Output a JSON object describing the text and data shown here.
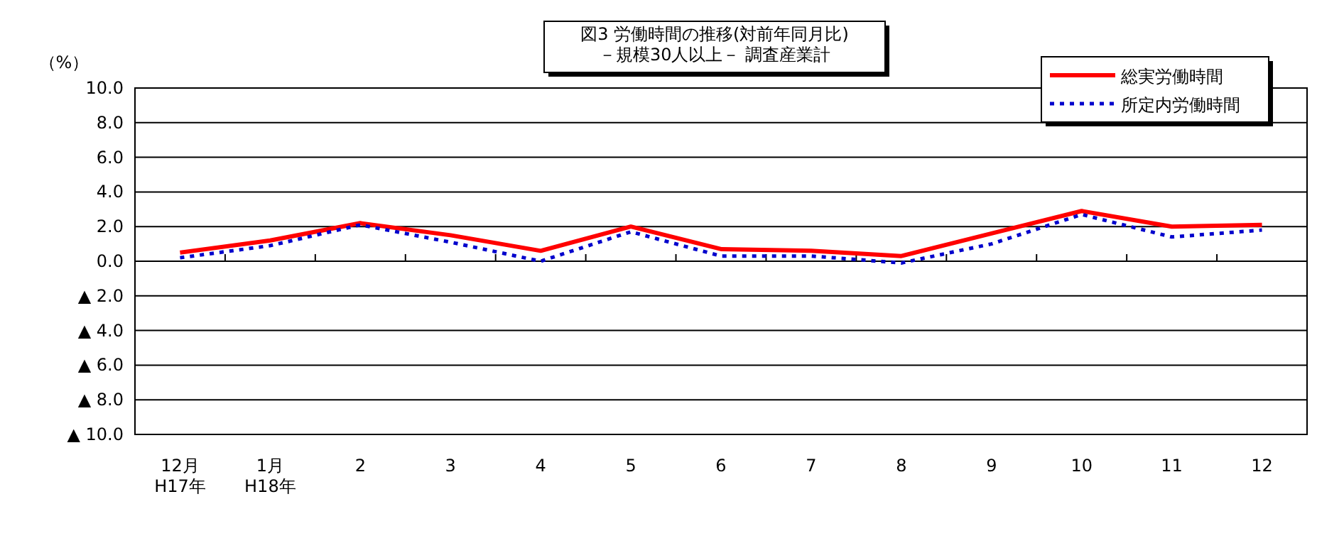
{
  "chart_data": {
    "type": "line",
    "title": "図3  労働時間の推移(対前年同月比)\n－規模30人以上－   調査産業計",
    "ylabel": "（%）",
    "categories": [
      "12月\nH17年",
      "1月\nH18年",
      "2",
      "3",
      "4",
      "5",
      "6",
      "7",
      "8",
      "9",
      "10",
      "11",
      "12"
    ],
    "series": [
      {
        "name": "総実労働時間",
        "color": "#ff0000",
        "line_style": "solid",
        "values": [
          0.5,
          1.2,
          2.2,
          1.5,
          0.6,
          2.0,
          0.7,
          0.6,
          0.3,
          1.6,
          2.9,
          2.0,
          2.1
        ]
      },
      {
        "name": "所定内労働時間",
        "color": "#0000cc",
        "line_style": "dotted",
        "values": [
          0.2,
          0.9,
          2.1,
          1.1,
          0.0,
          1.7,
          0.3,
          0.3,
          -0.1,
          1.0,
          2.7,
          1.4,
          1.8
        ]
      }
    ],
    "ylim": [
      -10,
      10
    ],
    "yticks": [
      {
        "value": 10,
        "label": "10.0"
      },
      {
        "value": 8,
        "label": "8.0"
      },
      {
        "value": 6,
        "label": "6.0"
      },
      {
        "value": 4,
        "label": "4.0"
      },
      {
        "value": 2,
        "label": "2.0"
      },
      {
        "value": 0,
        "label": "0.0"
      },
      {
        "value": -2,
        "label": "▲ 2.0"
      },
      {
        "value": -4,
        "label": "▲ 4.0"
      },
      {
        "value": -6,
        "label": "▲ 6.0"
      },
      {
        "value": -8,
        "label": "▲ 8.0"
      },
      {
        "value": -10,
        "label": "▲ 10.0"
      }
    ],
    "grid": "y",
    "legend": "top right",
    "marker": "none"
  }
}
